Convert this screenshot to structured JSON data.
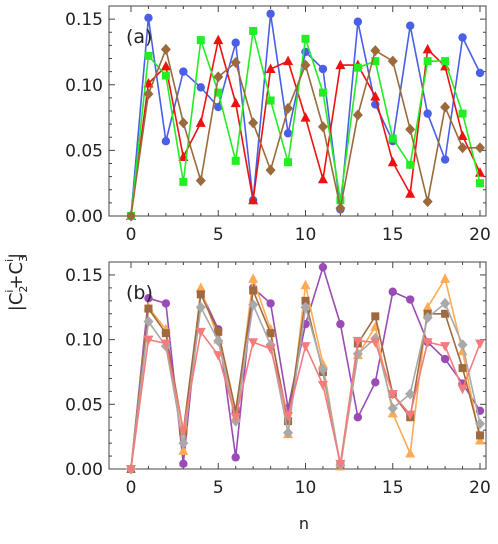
{
  "figure": {
    "xlabel": "n",
    "ylabel_main": "|C",
    "ylabel_sub1": "2",
    "ylabel_sup1": "i",
    "ylabel_plus": "+C",
    "ylabel_sub2": "3",
    "ylabel_sup2": "i",
    "ylabel_close": "|"
  },
  "chart_data": [
    {
      "type": "line",
      "panel_label": "(a)",
      "xlim": [
        0,
        20
      ],
      "ylim": [
        0,
        0.16
      ],
      "xticks": [
        "0",
        "5",
        "10",
        "15",
        "20"
      ],
      "yticks": [
        "0.00",
        "0.05",
        "0.10",
        "0.15"
      ],
      "grid": false,
      "x": [
        0,
        1,
        2,
        3,
        4,
        5,
        6,
        7,
        8,
        9,
        10,
        11,
        12,
        13,
        14,
        15,
        16,
        17,
        18,
        19,
        20
      ],
      "series": [
        {
          "color": "#4a5ee8",
          "marker": "circle",
          "values": [
            0,
            0.151,
            0.057,
            0.11,
            0.098,
            0.083,
            0.132,
            0.012,
            0.154,
            0.063,
            0.125,
            0.112,
            0.005,
            0.148,
            0.085,
            0.057,
            0.145,
            0.078,
            0.043,
            0.136,
            0.109
          ]
        },
        {
          "color": "#ee1111",
          "marker": "triangle",
          "values": [
            0,
            0.101,
            0.114,
            0.045,
            0.071,
            0.134,
            0.086,
            0.012,
            0.112,
            0.118,
            0.075,
            0.028,
            0.115,
            0.115,
            0.091,
            0.041,
            0.017,
            0.127,
            0.114,
            0.061,
            0.033
          ]
        },
        {
          "color": "#22ee22",
          "marker": "square",
          "values": [
            0,
            0.122,
            0.107,
            0.026,
            0.134,
            0.094,
            0.042,
            0.141,
            0.088,
            0.041,
            0.135,
            0.094,
            0.012,
            0.113,
            0.118,
            0.059,
            0.039,
            0.118,
            0.118,
            0.078,
            0.025
          ]
        },
        {
          "color": "#9b6a3a",
          "marker": "diamond",
          "values": [
            0,
            0.093,
            0.127,
            0.071,
            0.027,
            0.106,
            0.117,
            0.071,
            0.035,
            0.082,
            0.115,
            0.068,
            0.006,
            0.077,
            0.126,
            0.118,
            0.066,
            0.011,
            0.083,
            0.052,
            0.052
          ]
        }
      ]
    },
    {
      "type": "line",
      "panel_label": "(b)",
      "xlim": [
        0,
        20
      ],
      "ylim": [
        0,
        0.16
      ],
      "xticks": [
        "0",
        "5",
        "10",
        "15",
        "20"
      ],
      "yticks": [
        "0.00",
        "0.05",
        "0.10",
        "0.15"
      ],
      "grid": false,
      "x": [
        0,
        1,
        2,
        3,
        4,
        5,
        6,
        7,
        8,
        9,
        10,
        11,
        12,
        13,
        14,
        15,
        16,
        17,
        18,
        19,
        20
      ],
      "series": [
        {
          "color": "#9b4bb5",
          "marker": "circle",
          "values": [
            0,
            0.132,
            0.128,
            0.004,
            0.137,
            0.108,
            0.009,
            0.14,
            0.128,
            0.047,
            0.112,
            0.156,
            0.112,
            0.04,
            0.067,
            0.137,
            0.131,
            0.098,
            0.085,
            0.066,
            0.045
          ]
        },
        {
          "color": "#ffaa55",
          "marker": "triangle",
          "values": [
            0,
            0.125,
            0.108,
            0.014,
            0.14,
            0.1,
            0.04,
            0.147,
            0.108,
            0.027,
            0.142,
            0.081,
            0.002,
            0.088,
            0.11,
            0.043,
            0.012,
            0.125,
            0.147,
            0.091,
            0.022
          ]
        },
        {
          "color": "#a06a40",
          "marker": "square",
          "values": [
            0,
            0.124,
            0.105,
            0.029,
            0.135,
            0.106,
            0.045,
            0.138,
            0.105,
            0.037,
            0.13,
            0.075,
            0.003,
            0.097,
            0.118,
            0.058,
            0.04,
            0.12,
            0.12,
            0.078,
            0.026
          ]
        },
        {
          "color": "#a9a9a9",
          "marker": "diamond",
          "values": [
            0,
            0.114,
            0.095,
            0.02,
            0.125,
            0.099,
            0.037,
            0.127,
            0.096,
            0.028,
            0.125,
            0.077,
            0.003,
            0.089,
            0.101,
            0.047,
            0.058,
            0.117,
            0.128,
            0.096,
            0.035
          ]
        },
        {
          "color": "#f47c7c",
          "marker": "triangle-down",
          "values": [
            0,
            0.1,
            0.097,
            0.03,
            0.106,
            0.088,
            0.04,
            0.098,
            0.093,
            0.041,
            0.095,
            0.065,
            0.004,
            0.099,
            0.098,
            0.058,
            0.042,
            0.098,
            0.095,
            0.062,
            0.097
          ]
        }
      ]
    }
  ]
}
